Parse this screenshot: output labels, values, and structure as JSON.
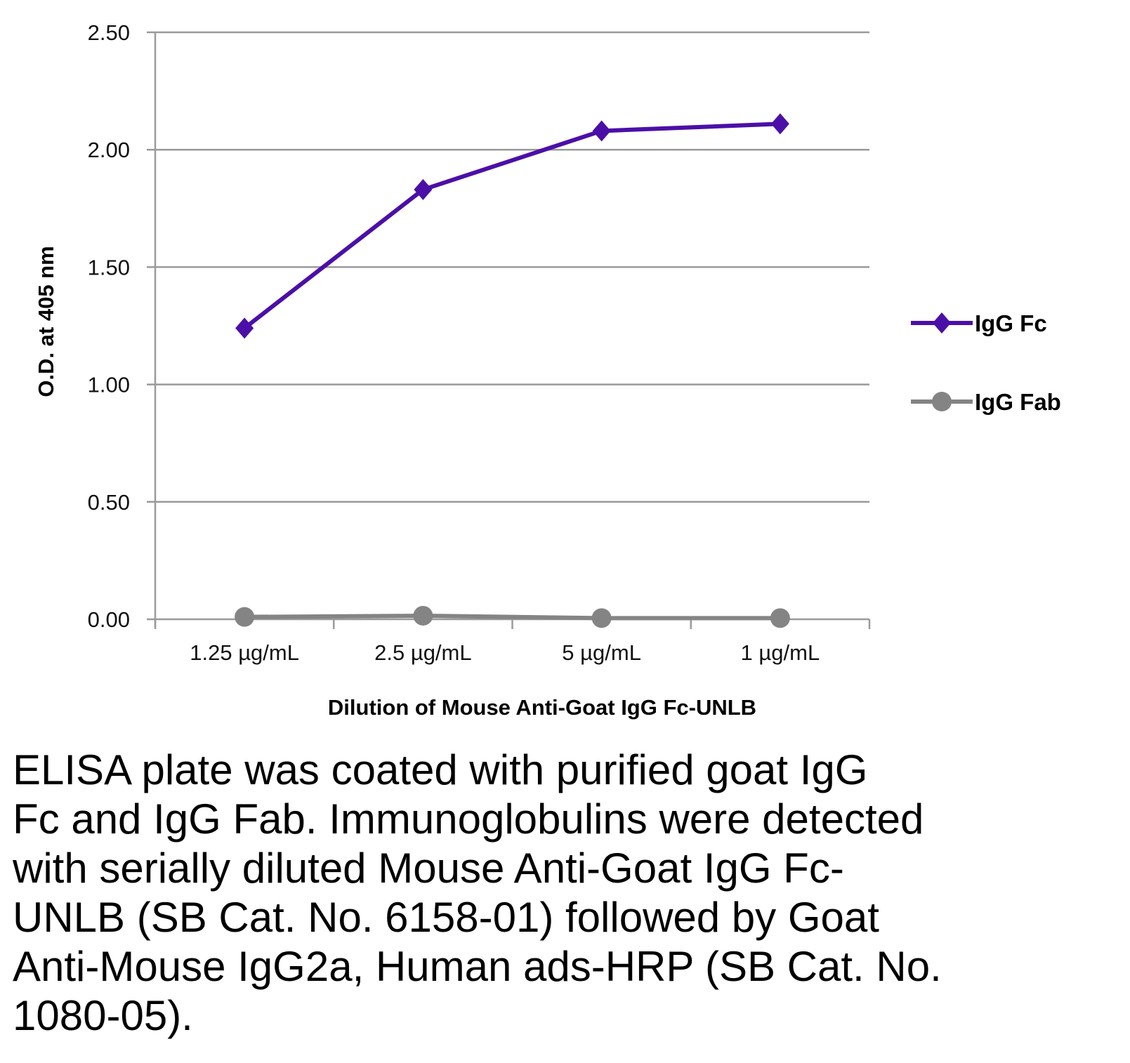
{
  "chart_data": {
    "type": "line",
    "title": "",
    "xlabel": "Dilution of Mouse Anti-Goat IgG Fc-UNLB",
    "ylabel": "O.D. at 405 nm",
    "categories": [
      "1.25 µg/mL",
      "2.5 µg/mL",
      "5 µg/mL",
      "1 µg/mL"
    ],
    "ylim": [
      0,
      2.5
    ],
    "yticks": [
      "0.00",
      "0.50",
      "1.00",
      "1.50",
      "2.00",
      "2.50"
    ],
    "ytick_values": [
      0,
      0.5,
      1,
      1.5,
      2,
      2.5
    ],
    "grid": true,
    "legend_position": "right",
    "series": [
      {
        "name": "IgG Fc",
        "values": [
          1.24,
          1.83,
          2.08,
          2.11
        ],
        "color": "#4B0FA8",
        "marker": "diamond"
      },
      {
        "name": "IgG Fab",
        "values": [
          0.01,
          0.015,
          0.005,
          0.005
        ],
        "color": "#848484",
        "marker": "circle"
      }
    ]
  },
  "caption": "ELISA plate was coated with purified goat IgG\nFc and IgG Fab.  Immunoglobulins were detected\nwith serially diluted Mouse Anti-Goat IgG Fc-\nUNLB (SB Cat. No. 6158-01) followed by Goat\nAnti-Mouse IgG2a, Human ads-HRP (SB Cat. No.\n1080-05)."
}
